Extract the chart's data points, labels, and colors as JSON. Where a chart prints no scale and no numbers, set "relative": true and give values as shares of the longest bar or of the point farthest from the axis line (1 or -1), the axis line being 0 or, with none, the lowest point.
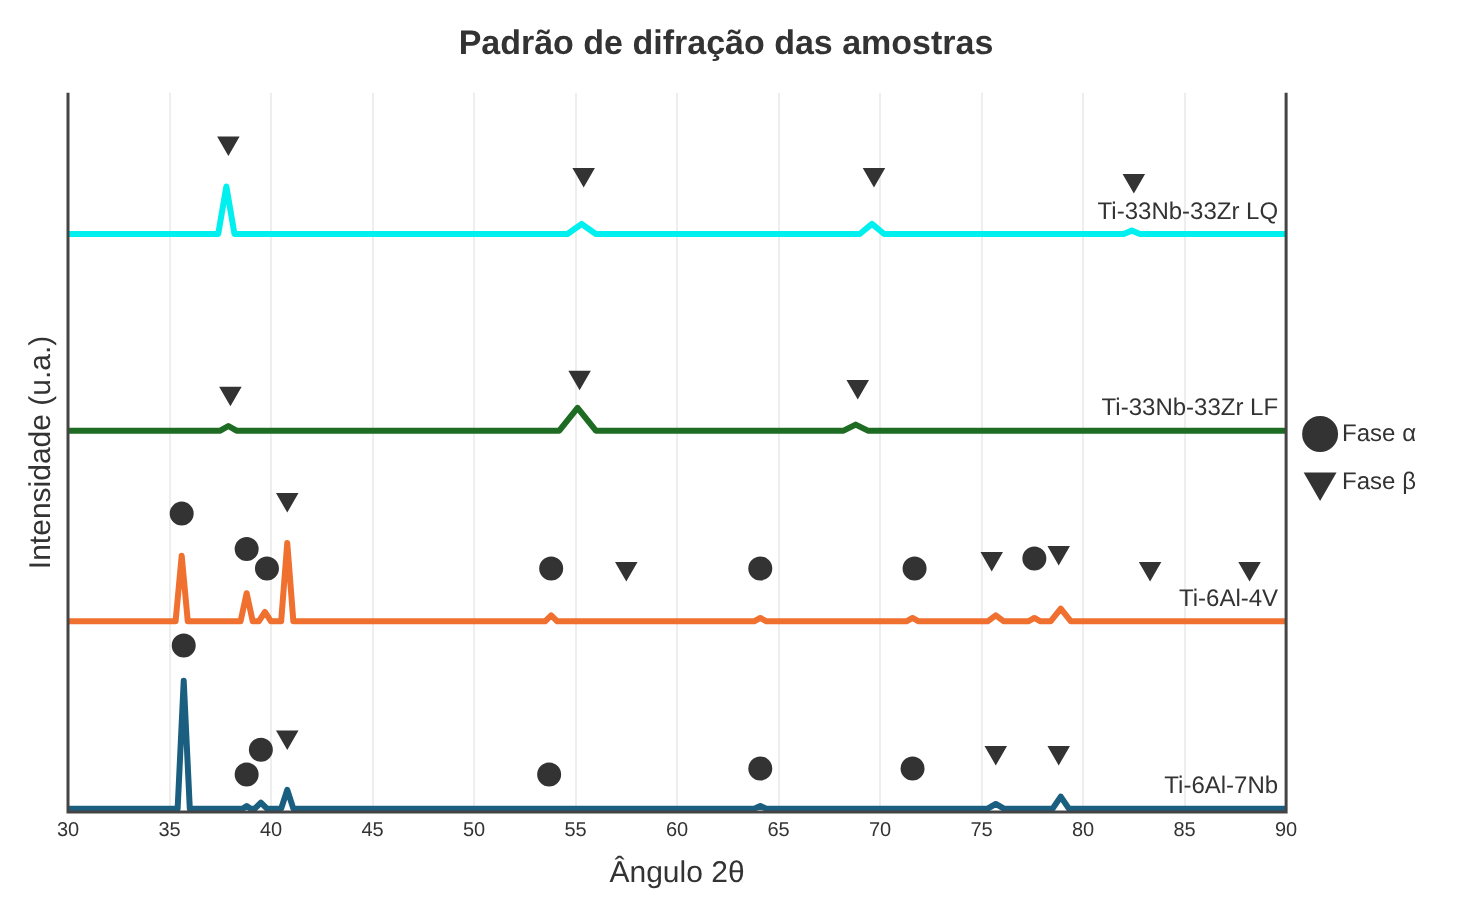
{
  "chart_data": {
    "type": "line",
    "title": "Padrão de difração das amostras",
    "xlabel": "Ângulo 2θ",
    "ylabel": "Intensidade (u.a.)",
    "relative": true,
    "xlim": [
      30,
      90
    ],
    "xticks": [
      30,
      35,
      40,
      45,
      50,
      55,
      60,
      65,
      70,
      75,
      80,
      85,
      90
    ],
    "grid": "x",
    "legend": "right",
    "marker": "none",
    "line_style": "solid",
    "series": [
      {
        "name": "Ti-33Nb-33Zr LQ",
        "color": "#00f0f0",
        "x": [
          30,
          37.4,
          37.8,
          38.2,
          54.6,
          55.3,
          56,
          69,
          69.6,
          70.2,
          82,
          82.4,
          82.8,
          90
        ],
        "values": [
          0.864,
          0.864,
          0.935,
          0.864,
          0.864,
          0.879,
          0.864,
          0.864,
          0.879,
          0.864,
          0.864,
          0.869,
          0.864,
          0.864
        ]
      },
      {
        "name": "Ti-33Nb-33Zr LF",
        "color": "#1e6b24",
        "x": [
          30,
          37.5,
          37.9,
          38.3,
          54.2,
          55.1,
          56,
          68.2,
          68.8,
          69.4,
          90
        ],
        "values": [
          0.57,
          0.57,
          0.577,
          0.57,
          0.57,
          0.604,
          0.57,
          0.57,
          0.579,
          0.57,
          0.57
        ]
      },
      {
        "name": "Ti-6Al-4V",
        "color": "#f07030",
        "x": [
          30,
          35.3,
          35.6,
          35.9,
          38.5,
          38.8,
          39.1,
          39.4,
          39.7,
          40,
          40.5,
          40.8,
          41.1,
          53.5,
          53.8,
          54.1,
          63.8,
          64.1,
          64.4,
          71.3,
          71.6,
          71.9,
          75.3,
          75.7,
          76.1,
          77.3,
          77.6,
          77.9,
          78.4,
          78.9,
          79.4,
          90
        ],
        "values": [
          0.285,
          0.285,
          0.383,
          0.285,
          0.285,
          0.327,
          0.285,
          0.285,
          0.299,
          0.285,
          0.285,
          0.402,
          0.285,
          0.285,
          0.294,
          0.285,
          0.285,
          0.29,
          0.285,
          0.285,
          0.29,
          0.285,
          0.285,
          0.294,
          0.285,
          0.285,
          0.29,
          0.285,
          0.285,
          0.304,
          0.285,
          0.285
        ]
      },
      {
        "name": "Ti-6Al-7Nb",
        "color": "#1a5f80",
        "x": [
          30,
          35.4,
          35.7,
          36,
          38.6,
          38.8,
          39,
          39.2,
          39.5,
          39.8,
          40.5,
          40.8,
          41.1,
          63.8,
          64.1,
          64.4,
          75.3,
          75.7,
          76.1,
          78.5,
          78.9,
          79.3,
          90
        ],
        "values": [
          0.005,
          0.005,
          0.196,
          0.005,
          0.005,
          0.009,
          0.005,
          0.005,
          0.014,
          0.005,
          0.005,
          0.033,
          0.005,
          0.005,
          0.009,
          0.005,
          0.005,
          0.012,
          0.005,
          0.005,
          0.023,
          0.005,
          0.005
        ]
      },
      {
        "name": "Fase α",
        "type": "scatter",
        "marker": "circle",
        "color": "#333333",
        "x": [
          35.6,
          38.8,
          39.8,
          53.8,
          64.1,
          71.7,
          77.6,
          35.7,
          38.8,
          39.5,
          53.7,
          64.1,
          71.6
        ],
        "values": [
          0.446,
          0.393,
          0.364,
          0.364,
          0.364,
          0.364,
          0.379,
          0.249,
          0.056,
          0.093,
          0.056,
          0.065,
          0.065
        ]
      },
      {
        "name": "Fase β",
        "type": "scatter",
        "marker": "triangle",
        "color": "#333333",
        "x": [
          37.9,
          55.4,
          69.7,
          82.5,
          38,
          55.2,
          68.9,
          40.8,
          57.5,
          75.5,
          78.8,
          83.3,
          88.2,
          40.8,
          75.7,
          78.8
        ],
        "values": [
          1,
          0.953,
          0.953,
          0.944,
          0.626,
          0.65,
          0.636,
          0.467,
          0.364,
          0.379,
          0.388,
          0.364,
          0.364,
          0.112,
          0.089,
          0.089
        ]
      }
    ]
  }
}
